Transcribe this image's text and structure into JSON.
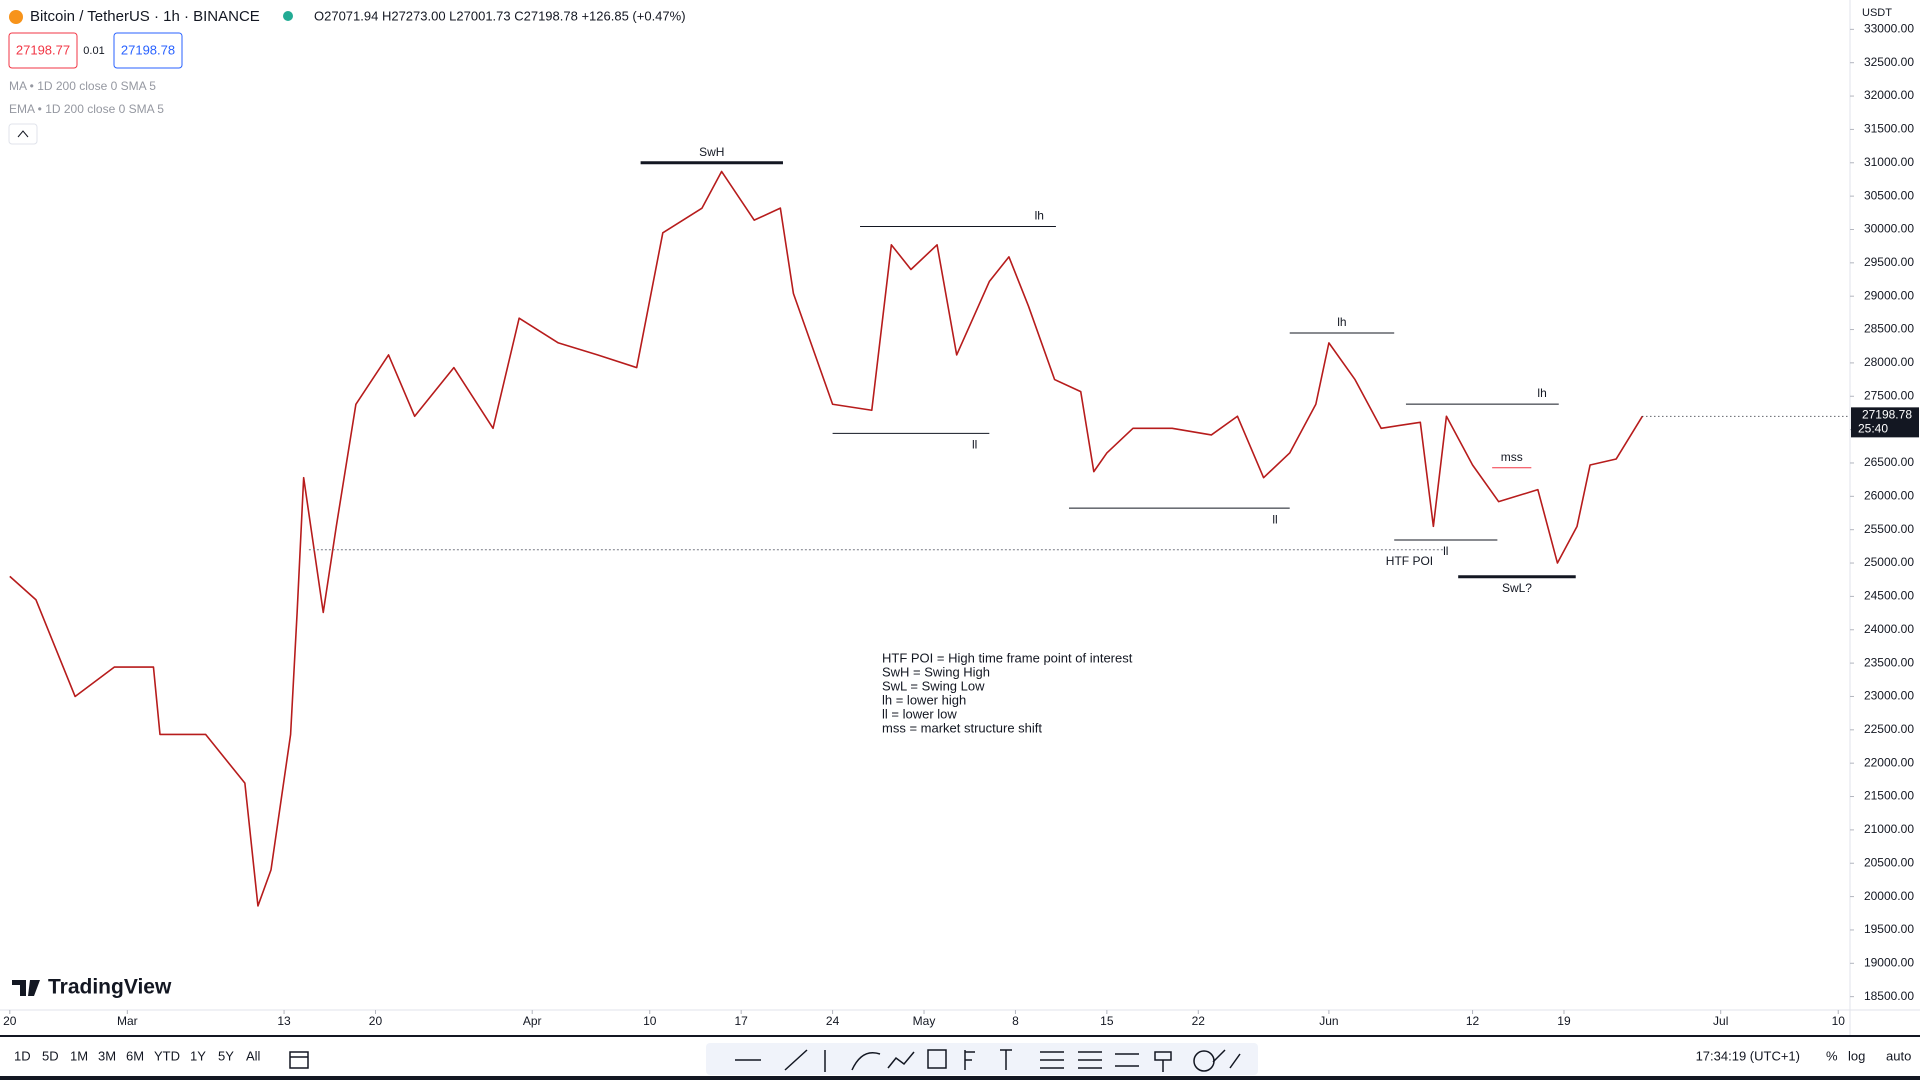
{
  "header": {
    "symbol": "Bitcoin / TetherUS · 1h · BINANCE",
    "ohlc": "O27071.94 H27273.00 L27001.73 C27198.78 +126.85 (+0.47%)",
    "sell": "27198.77",
    "spread": "0.01",
    "buy": "27198.78",
    "indicators": [
      "MA • 1D 200 close 0 SMA 5",
      "EMA • 1D 200 close 0 SMA 5"
    ],
    "currency": "USDT"
  },
  "chart_data": {
    "type": "line",
    "color": "#b71c1c",
    "x": [
      0,
      2,
      5,
      8,
      11,
      11.5,
      15,
      18,
      19,
      20,
      21.5,
      22,
      22.5,
      24,
      25,
      26.5,
      29,
      31,
      34,
      37,
      39,
      42,
      45,
      48,
      50,
      53,
      54.5,
      57,
      59,
      60,
      63,
      66,
      67.5,
      69,
      71,
      72.5,
      75,
      76.5,
      78,
      80,
      82,
      83,
      84,
      86,
      89,
      92,
      94,
      96,
      98,
      100,
      101,
      103,
      105,
      108,
      109,
      110,
      112,
      114,
      117,
      118.5,
      120,
      121,
      123,
      125
    ],
    "values": [
      24800,
      24450,
      23000,
      23440,
      23440,
      22430,
      22430,
      21700,
      19860,
      20400,
      22430,
      24260,
      26280,
      24260,
      25550,
      27380,
      28120,
      27200,
      27930,
      27020,
      28670,
      28300,
      28120,
      27930,
      29950,
      30320,
      30870,
      30140,
      30320,
      29040,
      27380,
      27290,
      29770,
      29400,
      29770,
      28120,
      29220,
      29590,
      28850,
      27750,
      27570,
      26370,
      26650,
      27020,
      27020,
      26920,
      27200,
      26280,
      26650,
      27380,
      28300,
      27750,
      27020,
      27110,
      25550,
      27200,
      26470,
      25920,
      26100,
      25000,
      25550,
      26470,
      26560,
      27200
    ],
    "xlim": [
      -0.75,
      140.9
    ],
    "ylim": [
      18300,
      33440
    ],
    "xticks": [
      {
        "value": 0,
        "label": "20"
      },
      {
        "value": 9,
        "label": "Mar"
      },
      {
        "value": 21,
        "label": "13"
      },
      {
        "value": 28,
        "label": "20"
      },
      {
        "value": 40,
        "label": "Apr"
      },
      {
        "value": 49,
        "label": "10"
      },
      {
        "value": 56,
        "label": "17"
      },
      {
        "value": 63,
        "label": "24"
      },
      {
        "value": 70,
        "label": "May"
      },
      {
        "value": 77,
        "label": "8"
      },
      {
        "value": 84,
        "label": "15"
      },
      {
        "value": 91,
        "label": "22"
      },
      {
        "value": 101,
        "label": "Jun"
      },
      {
        "value": 112,
        "label": "12"
      },
      {
        "value": 119,
        "label": "19"
      },
      {
        "value": 131,
        "label": "Jul"
      },
      {
        "value": 140,
        "label": "10"
      }
    ],
    "yticks": [
      {
        "value": 18500,
        "label": "18500.00"
      },
      {
        "value": 19000,
        "label": "19000.00"
      },
      {
        "value": 19500,
        "label": "19500.00"
      },
      {
        "value": 20000,
        "label": "20000.00"
      },
      {
        "value": 20500,
        "label": "20500.00"
      },
      {
        "value": 21000,
        "label": "21000.00"
      },
      {
        "value": 21500,
        "label": "21500.00"
      },
      {
        "value": 22000,
        "label": "22000.00"
      },
      {
        "value": 22500,
        "label": "22500.00"
      },
      {
        "value": 23000,
        "label": "23000.00"
      },
      {
        "value": 23500,
        "label": "23500.00"
      },
      {
        "value": 24000,
        "label": "24000.00"
      },
      {
        "value": 24500,
        "label": "24500.00"
      },
      {
        "value": 25000,
        "label": "25000.00"
      },
      {
        "value": 25500,
        "label": "25500.00"
      },
      {
        "value": 26000,
        "label": "26000.00"
      },
      {
        "value": 26500,
        "label": "26500.00"
      },
      {
        "value": 27000,
        "label": "27000.00"
      },
      {
        "value": 27500,
        "label": "27500.00"
      },
      {
        "value": 28000,
        "label": "28000.00"
      },
      {
        "value": 28500,
        "label": "28500.00"
      },
      {
        "value": 29000,
        "label": "29000.00"
      },
      {
        "value": 29500,
        "label": "29500.00"
      },
      {
        "value": 30000,
        "label": "30000.00"
      },
      {
        "value": 30500,
        "label": "30500.00"
      },
      {
        "value": 31000,
        "label": "31000.00"
      },
      {
        "value": 31500,
        "label": "31500.00"
      },
      {
        "value": 32000,
        "label": "32000.00"
      },
      {
        "value": 32500,
        "label": "32500.00"
      },
      {
        "value": 33000,
        "label": "33000.00"
      }
    ],
    "annotations": [
      {
        "label": "SwH",
        "value": 31000,
        "x_start": 48.3,
        "x_end": 59.2,
        "color": "#131722",
        "width": 3
      },
      {
        "label": "lh",
        "value": 30045,
        "x_start": 65.1,
        "x_end": 80.1,
        "color": "#131722",
        "width": 1
      },
      {
        "label": "ll",
        "value": 26943,
        "x_start": 63.0,
        "x_end": 75.0,
        "color": "#131722",
        "width": 1
      },
      {
        "label": "lh",
        "value": 28448,
        "x_start": 98.0,
        "x_end": 106.0,
        "color": "#131722",
        "width": 1
      },
      {
        "label": "ll",
        "value": 25823,
        "x_start": 81.1,
        "x_end": 98.0,
        "color": "#131722",
        "width": 1
      },
      {
        "label": "lh",
        "value": 27383,
        "x_start": 106.9,
        "x_end": 118.6,
        "color": "#131722",
        "width": 1
      },
      {
        "label": "mss",
        "value": 26429,
        "x_start": 113.5,
        "x_end": 116.5,
        "color": "#f23645",
        "width": 1
      },
      {
        "label": "ll",
        "value": 25346,
        "x_start": 106.0,
        "x_end": 113.9,
        "color": "#131722",
        "width": 1
      },
      {
        "label": "SwL?",
        "value": 24795,
        "x_start": 110.9,
        "x_end": 119.9,
        "color": "#131722",
        "width": 3
      },
      {
        "label": "HTF POI",
        "value": 25199,
        "x_start": 22.9,
        "x_end": 109.9,
        "color": "#787b86",
        "width": 1,
        "dashed": true
      }
    ],
    "notes": [
      "HTF POI = High time frame point of interest",
      "SwH = Swing High",
      "SwL = Swing Low",
      "lh = lower high",
      "ll = lower low",
      "mss = market structure shift"
    ],
    "last_price": {
      "value": 27198.78,
      "countdown": "25:40"
    }
  },
  "toolbar": {
    "ranges": [
      "1D",
      "5D",
      "1M",
      "3M",
      "6M",
      "YTD",
      "1Y",
      "5Y",
      "All"
    ],
    "time": "17:34:19 (UTC+1)",
    "options": [
      "%",
      "log",
      "auto"
    ],
    "brand": "TradingView"
  }
}
